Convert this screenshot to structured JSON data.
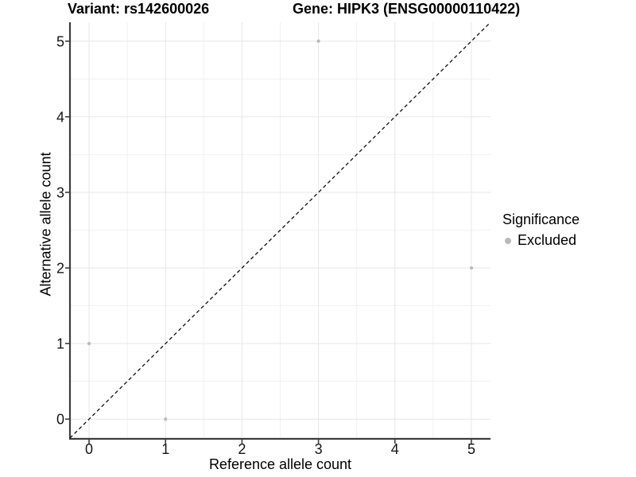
{
  "chart_data": {
    "type": "scatter",
    "title_left": "Variant: rs142600026",
    "title_right": "Gene: HIPK3 (ENSG00000110422)",
    "xlabel": "Reference allele count",
    "ylabel": "Alternative allele count",
    "xlim": [
      -0.25,
      5.25
    ],
    "ylim": [
      -0.25,
      5.25
    ],
    "x_ticks": [
      0,
      1,
      2,
      3,
      4,
      5
    ],
    "y_ticks": [
      0,
      1,
      2,
      3,
      4,
      5
    ],
    "grid": "major and minor gridlines on white panel",
    "points": [
      {
        "x": 0,
        "y": 1,
        "significance": "Excluded"
      },
      {
        "x": 1,
        "y": 0,
        "significance": "Excluded"
      },
      {
        "x": 3,
        "y": 5,
        "significance": "Excluded"
      },
      {
        "x": 5,
        "y": 2,
        "significance": "Excluded"
      }
    ],
    "reference_line": {
      "type": "identity",
      "slope": 1,
      "intercept": 0,
      "style": "dashed",
      "color": "#000000"
    },
    "legend": {
      "title": "Significance",
      "position": "right",
      "items": [
        {
          "label": "Excluded",
          "color": "#b9b9b9"
        }
      ]
    },
    "colors": {
      "point": "#b9b9b9",
      "grid_major": "#e6e6e6",
      "grid_minor": "#f1f1f1",
      "axis_line": "#3d3d3d",
      "dashed_line": "#111111",
      "tick_text": "#141414",
      "title_text": "#000000"
    }
  }
}
